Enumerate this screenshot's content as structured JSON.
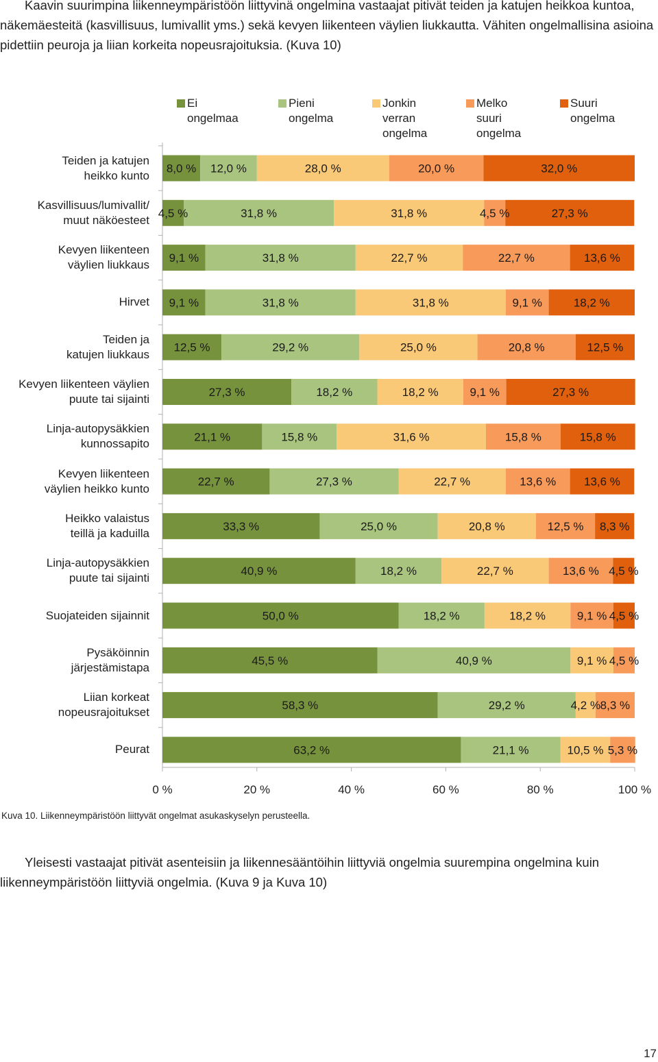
{
  "intro": {
    "text": "Kaavin suurimpina liikenneympäristöön liittyvinä ongelmina vastaajat pitivät teiden ja katujen heikkoa kuntoa, näkemäesteitä (kasvillisuus, lumivallit yms.) sekä kevyen liikenteen väylien liukkautta. Vähiten ongelmallisina asioina pidettiin peuroja ja liian korkeita nopeusrajoituksia. (Kuva 10)"
  },
  "chart_data": {
    "type": "bar",
    "orientation": "horizontal",
    "stacked": "percent",
    "title": "",
    "xlabel": "",
    "ylabel": "",
    "xlim": [
      0,
      100
    ],
    "x_ticks": [
      "0 %",
      "20 %",
      "40 %",
      "60 %",
      "80 %",
      "100 %"
    ],
    "legend": "top",
    "grid": false,
    "colors": [
      "#76923c",
      "#a9c47f",
      "#fac978",
      "#f79a5a",
      "#e0600e"
    ],
    "series_names": [
      "Ei\nongelmaa",
      "Pieni\nongelma",
      "Jonkin\nverran\nongelma",
      "Melko\nsuuri\nongelma",
      "Suuri\nongelma"
    ],
    "categories": [
      "Teiden ja katujen\nheikko kunto",
      "Kasvillisuus/lumivallit/\nmuut näköesteet",
      "Kevyen liikenteen\nväylien liukkaus",
      "Hirvet",
      "Teiden ja\nkatujen liukkaus",
      "Kevyen liikenteen väylien\npuute tai sijainti",
      "Linja-autopysäkkien\nkunnossapito",
      "Kevyen liikenteen\nväylien heikko kunto",
      "Heikko valaistus\nteillä ja kaduilla",
      "Linja-autopysäkkien\npuute tai sijainti",
      "Suojateiden sijainnit",
      "Pysäköinnin\njärjestämistapa",
      "Liian korkeat\nnopeusrajoitukset",
      "Peurat"
    ],
    "rows": [
      {
        "values": [
          8.0,
          12.0,
          28.0,
          20.0,
          32.0
        ],
        "labels": [
          "8,0 %",
          "12,0 %",
          "28,0 %",
          "20,0 %",
          "32,0 %"
        ]
      },
      {
        "values": [
          4.5,
          31.8,
          31.8,
          4.5,
          27.3
        ],
        "labels": [
          "4,5 %",
          "31,8 %",
          "31,8 %",
          "4,5 %",
          "27,3 %"
        ]
      },
      {
        "values": [
          9.1,
          31.8,
          22.7,
          22.7,
          13.6
        ],
        "labels": [
          "9,1 %",
          "31,8 %",
          "22,7 %",
          "22,7 %",
          "13,6 %"
        ]
      },
      {
        "values": [
          9.1,
          31.8,
          31.8,
          9.1,
          18.2
        ],
        "labels": [
          "9,1 %",
          "31,8 %",
          "31,8 %",
          "9,1 %",
          "18,2 %"
        ]
      },
      {
        "values": [
          12.5,
          29.2,
          25.0,
          20.8,
          12.5
        ],
        "labels": [
          "12,5 %",
          "29,2 %",
          "25,0 %",
          "20,8 %",
          "12,5 %"
        ]
      },
      {
        "values": [
          27.3,
          18.2,
          18.2,
          9.1,
          27.3
        ],
        "labels": [
          "27,3 %",
          "18,2 %",
          "18,2 %",
          "9,1 %",
          "27,3 %"
        ]
      },
      {
        "values": [
          21.1,
          15.8,
          31.6,
          15.8,
          15.8
        ],
        "labels": [
          "21,1 %",
          "15,8 %",
          "31,6 %",
          "15,8 %",
          "15,8 %"
        ]
      },
      {
        "values": [
          22.7,
          27.3,
          22.7,
          13.6,
          13.6
        ],
        "labels": [
          "22,7 %",
          "27,3 %",
          "22,7 %",
          "13,6 %",
          "13,6 %"
        ]
      },
      {
        "values": [
          33.3,
          25.0,
          20.8,
          12.5,
          8.3
        ],
        "labels": [
          "33,3 %",
          "25,0 %",
          "20,8 %",
          "12,5 %",
          "8,3 %"
        ]
      },
      {
        "values": [
          40.9,
          18.2,
          22.7,
          13.6,
          4.5
        ],
        "labels": [
          "40,9 %",
          "18,2 %",
          "22,7 %",
          "13,6 %",
          "4,5 %"
        ]
      },
      {
        "values": [
          50.0,
          18.2,
          18.2,
          9.1,
          4.5
        ],
        "labels": [
          "50,0 %",
          "18,2 %",
          "18,2 %",
          "9,1 %",
          "4,5 %"
        ]
      },
      {
        "values": [
          45.5,
          40.9,
          9.1,
          4.5,
          0
        ],
        "labels": [
          "45,5 %",
          "40,9 %",
          "9,1 %",
          "4,5 %",
          ""
        ]
      },
      {
        "values": [
          58.3,
          29.2,
          4.2,
          8.3,
          0
        ],
        "labels": [
          "58,3 %",
          "29,2 %",
          "4,2 %",
          "8,3 %",
          ""
        ]
      },
      {
        "values": [
          63.2,
          21.1,
          10.5,
          5.3,
          0
        ],
        "labels": [
          "63,2 %",
          "21,1 %",
          "10,5 %",
          "5,3 %",
          ""
        ]
      }
    ]
  },
  "caption": "Kuva 10. Liikenneympäristöön liittyvät ongelmat asukaskyselyn perusteella.",
  "outro": {
    "text": "Yleisesti vastaajat pitivät asenteisiin ja liikennesääntöihin liittyviä ongelmia suurempina ongelmina kuin liikenneympäristöön liittyviä ongelmia. (Kuva 9 ja Kuva 10)"
  },
  "page_number": "17"
}
